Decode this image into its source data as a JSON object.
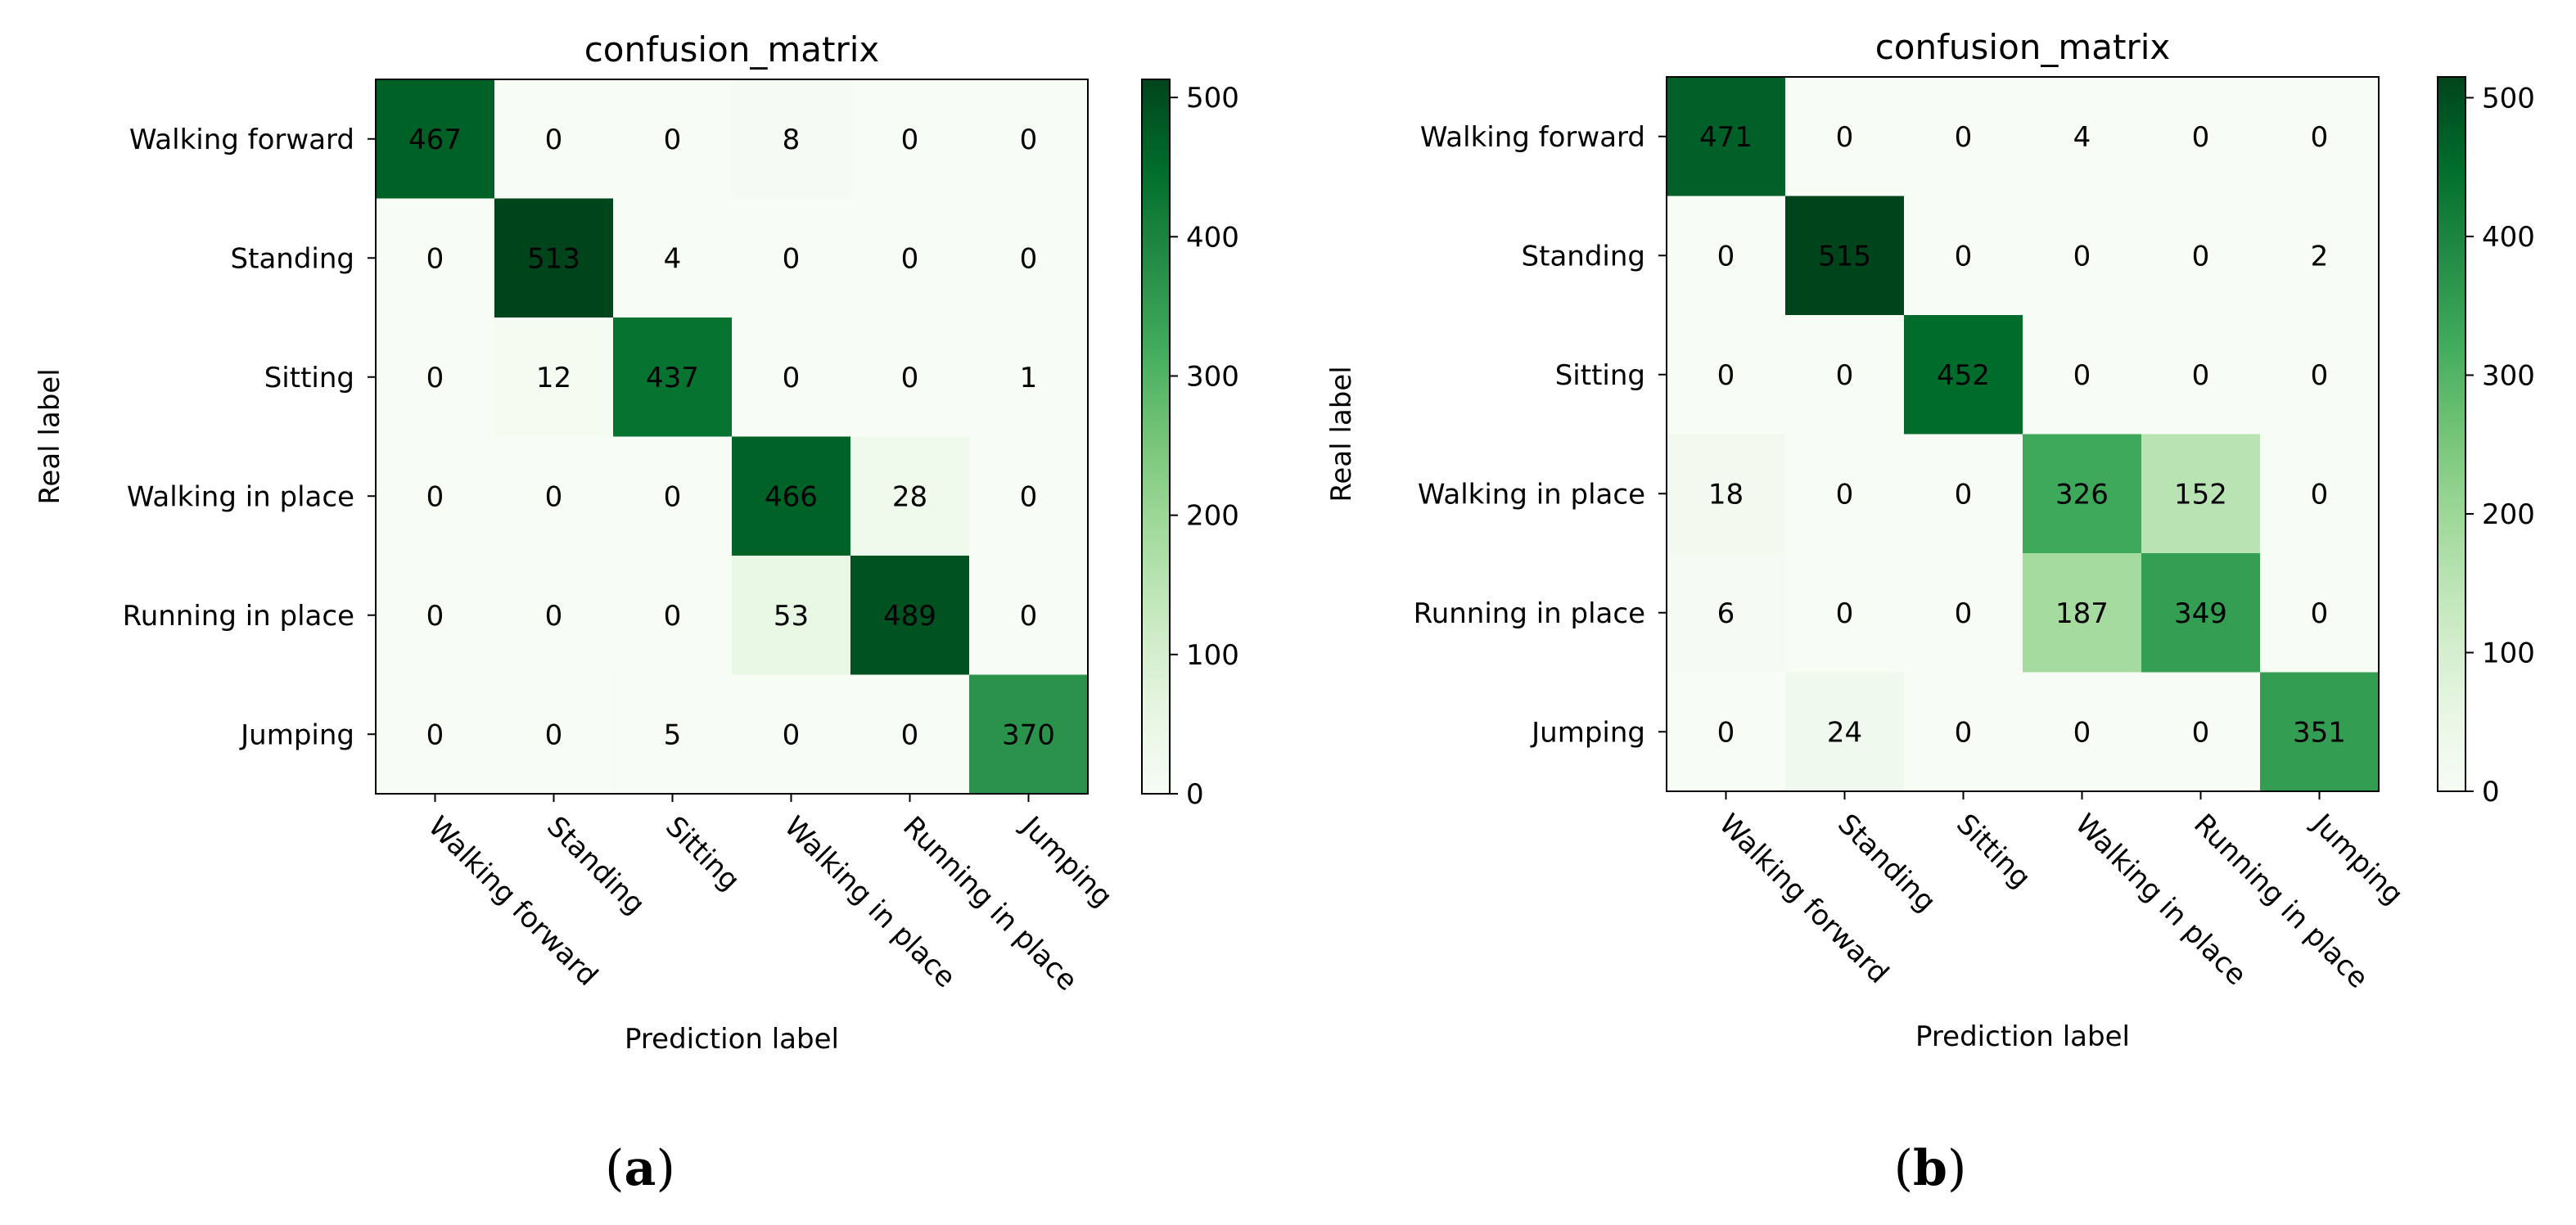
{
  "chart_data": [
    {
      "type": "heatmap",
      "panel": "(a)",
      "panel_letter": "a",
      "title": "confusion_matrix",
      "xlabel": "Prediction label",
      "ylabel": "Real label",
      "x_categories": [
        "Walking forward",
        "Standing",
        "Sitting",
        "Walking in place",
        "Running in place",
        "Jumping"
      ],
      "y_categories": [
        "Walking forward",
        "Standing",
        "Sitting",
        "Walking in place",
        "Running in place",
        "Jumping"
      ],
      "values": [
        [
          467,
          0,
          0,
          8,
          0,
          0
        ],
        [
          0,
          513,
          4,
          0,
          0,
          0
        ],
        [
          0,
          12,
          437,
          0,
          0,
          1
        ],
        [
          0,
          0,
          0,
          466,
          28,
          0
        ],
        [
          0,
          0,
          0,
          53,
          489,
          0
        ],
        [
          0,
          0,
          5,
          0,
          0,
          370
        ]
      ],
      "colorbar": {
        "min": 0,
        "max": 513,
        "ticks": [
          0,
          100,
          200,
          300,
          400,
          500
        ],
        "colormap": "Greens"
      }
    },
    {
      "type": "heatmap",
      "panel": "(b)",
      "panel_letter": "b",
      "title": "confusion_matrix",
      "xlabel": "Prediction label",
      "ylabel": "Real label",
      "x_categories": [
        "Walking forward",
        "Standing",
        "Sitting",
        "Walking in place",
        "Running in place",
        "Jumping"
      ],
      "y_categories": [
        "Walking forward",
        "Standing",
        "Sitting",
        "Walking in place",
        "Running in place",
        "Jumping"
      ],
      "values": [
        [
          471,
          0,
          0,
          4,
          0,
          0
        ],
        [
          0,
          515,
          0,
          0,
          0,
          2
        ],
        [
          0,
          0,
          452,
          0,
          0,
          0
        ],
        [
          18,
          0,
          0,
          326,
          152,
          0
        ],
        [
          6,
          0,
          0,
          187,
          349,
          0
        ],
        [
          0,
          24,
          0,
          0,
          0,
          351
        ]
      ],
      "colorbar": {
        "min": 0,
        "max": 515,
        "ticks": [
          0,
          100,
          200,
          300,
          400,
          500
        ],
        "colormap": "Greens"
      }
    }
  ]
}
